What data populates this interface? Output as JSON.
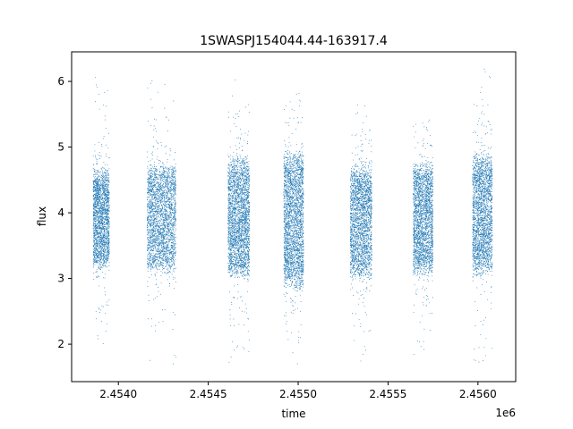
{
  "chart_data": {
    "type": "scatter",
    "title": "1SWASPJ154044.44-163917.4",
    "xlabel": "time",
    "ylabel": "flux",
    "x_offset_label": "1e6",
    "xlim": [
      2.45374,
      2.45621
    ],
    "ylim": [
      1.43,
      6.45
    ],
    "x_ticks": [
      2.454,
      2.4545,
      2.455,
      2.4555,
      2.456
    ],
    "x_tick_labels": [
      "2.4540",
      "2.4545",
      "2.4550",
      "2.4555",
      "2.4560"
    ],
    "y_ticks": [
      2,
      3,
      4,
      5,
      6
    ],
    "y_tick_labels": [
      "2",
      "3",
      "4",
      "5",
      "6"
    ],
    "grid": false,
    "marker_color": "#1f77b4",
    "series": [
      {
        "clusters": [
          {
            "x_range": [
              2.45386,
              2.45395
            ],
            "y_core": [
              3.1,
              4.7
            ],
            "y_full": [
              1.75,
              6.15
            ],
            "count": 2200
          },
          {
            "x_range": [
              2.45416,
              2.45432
            ],
            "y_core": [
              3.05,
              4.8
            ],
            "y_full": [
              1.7,
              6.25
            ],
            "count": 2800
          },
          {
            "x_range": [
              2.45461,
              2.45473
            ],
            "y_core": [
              2.95,
              4.9
            ],
            "y_full": [
              1.65,
              6.1
            ],
            "count": 2800
          },
          {
            "x_range": [
              2.45492,
              2.45503
            ],
            "y_core": [
              2.8,
              5.0
            ],
            "y_full": [
              1.65,
              5.85
            ],
            "count": 2800
          },
          {
            "x_range": [
              2.45529,
              2.45541
            ],
            "y_core": [
              2.95,
              4.75
            ],
            "y_full": [
              1.7,
              5.75
            ],
            "count": 2500
          },
          {
            "x_range": [
              2.45564,
              2.45575
            ],
            "y_core": [
              3.0,
              4.8
            ],
            "y_full": [
              1.8,
              5.45
            ],
            "count": 2500
          },
          {
            "x_range": [
              2.45597,
              2.45608
            ],
            "y_core": [
              3.0,
              4.95
            ],
            "y_full": [
              1.7,
              6.2
            ],
            "count": 2500
          }
        ]
      }
    ]
  }
}
